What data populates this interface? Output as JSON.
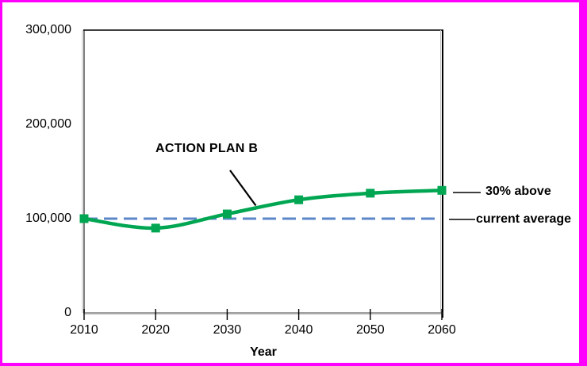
{
  "frame": {
    "border_color": "#ff00ff",
    "background": "#ffffff"
  },
  "chart_data": {
    "type": "line",
    "title": "",
    "xlabel": "Year",
    "ylabel": "",
    "grid": false,
    "legend": "none",
    "xlim": [
      2010,
      2060
    ],
    "ylim": [
      0,
      300000
    ],
    "x": [
      2010,
      2020,
      2030,
      2040,
      2050,
      2060
    ],
    "x_tick_labels": [
      "2010",
      "2020",
      "2030",
      "2040",
      "2050",
      "2060"
    ],
    "y_ticks": [
      0,
      100000,
      200000,
      300000
    ],
    "y_tick_labels": [
      "0",
      "100,000",
      "200,000",
      "300,000"
    ],
    "series": [
      {
        "name": "ACTION PLAN B",
        "values": [
          100000,
          90000,
          105000,
          120000,
          127000,
          130000
        ],
        "color": "#00a651",
        "marker": "square",
        "smooth": true
      }
    ],
    "reference_line": {
      "value": 100000,
      "label": "current average",
      "color": "#5b87c9",
      "style": "dashed"
    },
    "annotations": {
      "series_label": "ACTION PLAN B",
      "end_label": "30% above",
      "reference_label": "current average"
    },
    "line_colors": {
      "axis_dark": "#000000",
      "axis_gray": "#7f7f7f",
      "axis_light": "#c0c0c0"
    }
  }
}
